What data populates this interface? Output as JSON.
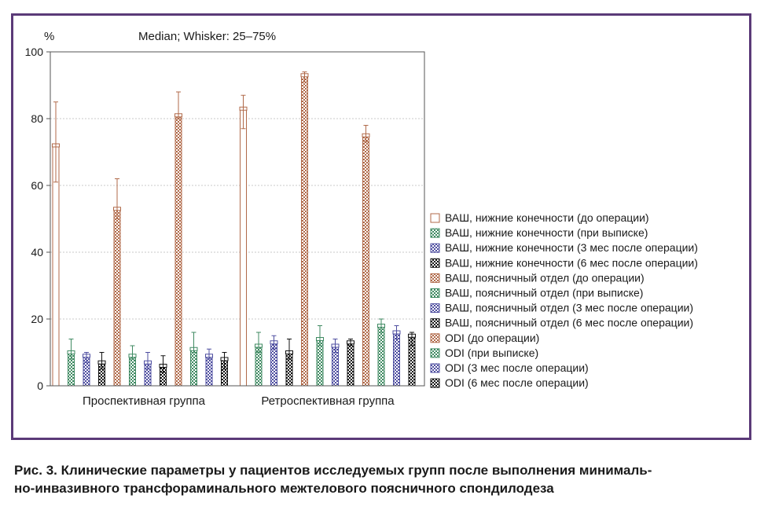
{
  "chart_data": {
    "type": "bar",
    "title": "Median; Whisker: 25–75%",
    "ylabel": "%",
    "ylim": [
      0,
      100
    ],
    "yticks": [
      0,
      20,
      40,
      60,
      80,
      100
    ],
    "grid": true,
    "legend_position": "right",
    "categories": [
      "Проспективная группа",
      "Ретроспективная группа"
    ],
    "series": [
      {
        "name": "ВАШ, нижние конечности (до операции)",
        "color": "#b06a4a",
        "pattern": "plain",
        "values": [
          72,
          83
        ],
        "whisker_low": [
          61,
          77
        ],
        "whisker_high": [
          85,
          87
        ]
      },
      {
        "name": "ВАШ, нижние конечности (при выписке)",
        "color": "#3f8a62",
        "pattern": "check",
        "values": [
          10,
          12
        ],
        "whisker_low": [
          8,
          10
        ],
        "whisker_high": [
          14,
          16
        ]
      },
      {
        "name": "ВАШ, нижние конечности (3 мес после операции)",
        "color": "#4f4fa0",
        "pattern": "check",
        "values": [
          9,
          13
        ],
        "whisker_low": [
          7,
          11
        ],
        "whisker_high": [
          10,
          15
        ]
      },
      {
        "name": "ВАШ, нижние конечности (6 мес после операции)",
        "color": "#111111",
        "pattern": "check",
        "values": [
          7,
          10
        ],
        "whisker_low": [
          5,
          8
        ],
        "whisker_high": [
          10,
          14
        ]
      },
      {
        "name": "ВАШ, поясничный отдел (до операции)",
        "color": "#b06a4a",
        "pattern": "check",
        "values": [
          53,
          93
        ],
        "whisker_low": [
          50,
          91
        ],
        "whisker_high": [
          62,
          94
        ]
      },
      {
        "name": "ВАШ, поясничный отдел (при выписке)",
        "color": "#3f8a62",
        "pattern": "check",
        "values": [
          9,
          14
        ],
        "whisker_low": [
          8,
          12
        ],
        "whisker_high": [
          12,
          18
        ]
      },
      {
        "name": "ВАШ, поясничный отдел (3 мес после операции)",
        "color": "#4f4fa0",
        "pattern": "check",
        "values": [
          7,
          12
        ],
        "whisker_low": [
          5,
          10
        ],
        "whisker_high": [
          10,
          14
        ]
      },
      {
        "name": "ВАШ, поясничный отдел (6 мес после операции)",
        "color": "#111111",
        "pattern": "check",
        "values": [
          6,
          13
        ],
        "whisker_low": [
          4,
          12
        ],
        "whisker_high": [
          9,
          14
        ]
      },
      {
        "name": "ODI (до операции)",
        "color": "#b06a4a",
        "pattern": "check",
        "values": [
          81,
          75
        ],
        "whisker_low": [
          80,
          73
        ],
        "whisker_high": [
          88,
          78
        ]
      },
      {
        "name": "ODI (при выписке)",
        "color": "#3f8a62",
        "pattern": "check",
        "values": [
          11,
          18
        ],
        "whisker_low": [
          10,
          16
        ],
        "whisker_high": [
          16,
          20
        ]
      },
      {
        "name": "ODI (3 мес после операции)",
        "color": "#4f4fa0",
        "pattern": "check",
        "values": [
          9,
          16
        ],
        "whisker_low": [
          8,
          14
        ],
        "whisker_high": [
          11,
          18
        ]
      },
      {
        "name": "ODI (6 мес после операции)",
        "color": "#111111",
        "pattern": "check",
        "values": [
          8,
          15
        ],
        "whisker_low": [
          5,
          12
        ],
        "whisker_high": [
          10,
          16
        ]
      }
    ]
  },
  "caption": {
    "line1": "Рис. 3. Клинические параметры у пациентов исследуемых групп после выполнения минималь-",
    "line2": "но-инвазивного трансфораминального межтелового поясничного спондилодеза"
  },
  "colors": {
    "frame": "#5b3a78",
    "grid": "#c8c8c8",
    "axis": "#555555"
  }
}
